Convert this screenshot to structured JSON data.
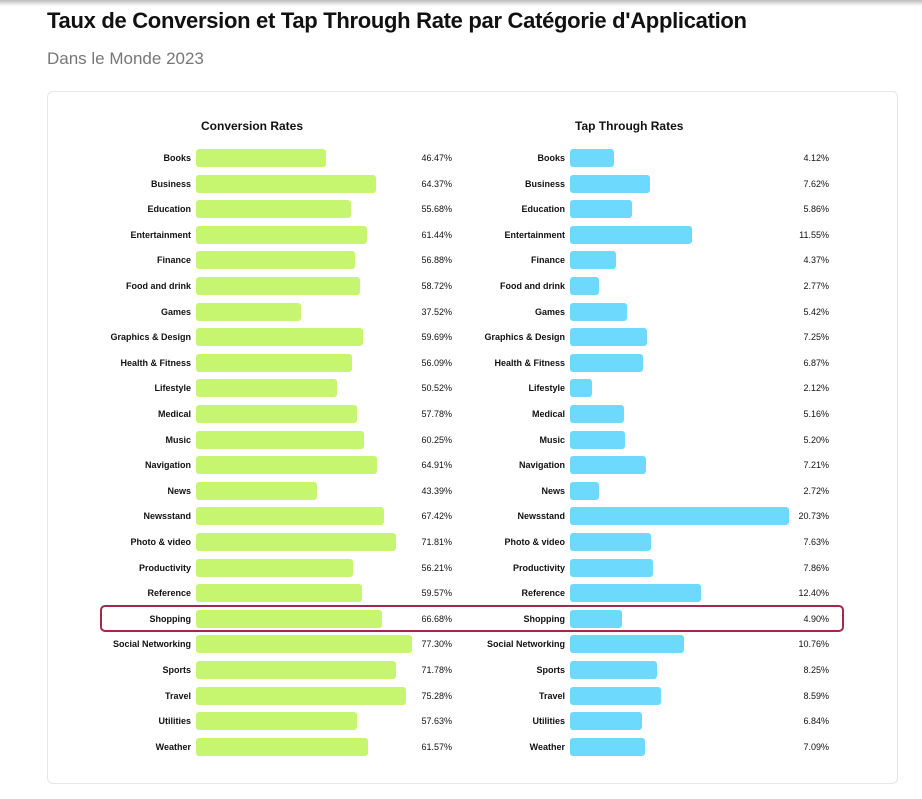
{
  "header": {
    "title": "Taux de Conversion et Tap Through Rate par Catégorie d'Application",
    "subtitle": "Dans le Monde 2023"
  },
  "colors": {
    "conversion_bar": "#c6f56f",
    "tap_through_bar": "#6dd9fd",
    "highlight_border": "#a3294a"
  },
  "highlighted_category": "Shopping",
  "chart_data": [
    {
      "type": "bar",
      "orientation": "horizontal",
      "title": "Conversion Rates",
      "unit": "%",
      "xlim": [
        0,
        100
      ],
      "categories": [
        "Books",
        "Business",
        "Education",
        "Entertainment",
        "Finance",
        "Food and drink",
        "Games",
        "Graphics & Design",
        "Health & Fitness",
        "Lifestyle",
        "Medical",
        "Music",
        "Navigation",
        "News",
        "Newsstand",
        "Photo & video",
        "Productivity",
        "Reference",
        "Shopping",
        "Social Networking",
        "Sports",
        "Travel",
        "Utilities",
        "Weather"
      ],
      "values": [
        46.47,
        64.37,
        55.68,
        61.44,
        56.88,
        58.72,
        37.52,
        59.69,
        56.09,
        50.52,
        57.78,
        60.25,
        64.91,
        43.39,
        67.42,
        71.81,
        56.21,
        59.57,
        66.68,
        77.3,
        71.78,
        75.28,
        57.63,
        61.57
      ],
      "labels": [
        "46.47%",
        "64.37%",
        "55.68%",
        "61.44%",
        "56.88%",
        "58.72%",
        "37.52%",
        "59.69%",
        "56.09%",
        "50.52%",
        "57.78%",
        "60.25%",
        "64.91%",
        "43.39%",
        "67.42%",
        "71.81%",
        "56.21%",
        "59.57%",
        "66.68%",
        "77.30%",
        "71.78%",
        "75.28%",
        "57.63%",
        "61.57%"
      ]
    },
    {
      "type": "bar",
      "orientation": "horizontal",
      "title": "Tap Through Rates",
      "unit": "%",
      "xlim": [
        0,
        25
      ],
      "categories": [
        "Books",
        "Business",
        "Education",
        "Entertainment",
        "Finance",
        "Food and drink",
        "Games",
        "Graphics & Design",
        "Health & Fitness",
        "Lifestyle",
        "Medical",
        "Music",
        "Navigation",
        "News",
        "Newsstand",
        "Photo & video",
        "Productivity",
        "Reference",
        "Shopping",
        "Social Networking",
        "Sports",
        "Travel",
        "Utilities",
        "Weather"
      ],
      "values": [
        4.12,
        7.62,
        5.86,
        11.55,
        4.37,
        2.77,
        5.42,
        7.25,
        6.87,
        2.12,
        5.16,
        5.2,
        7.21,
        2.72,
        20.73,
        7.63,
        7.86,
        12.4,
        4.9,
        10.76,
        8.25,
        8.59,
        6.84,
        7.09
      ],
      "labels": [
        "4.12%",
        "7.62%",
        "5.86%",
        "11.55%",
        "4.37%",
        "2.77%",
        "5.42%",
        "7.25%",
        "6.87%",
        "2.12%",
        "5.16%",
        "5.20%",
        "7.21%",
        "2.72%",
        "20.73%",
        "7.63%",
        "7.86%",
        "12.40%",
        "4.90%",
        "10.76%",
        "8.25%",
        "8.59%",
        "6.84%",
        "7.09%"
      ]
    }
  ]
}
